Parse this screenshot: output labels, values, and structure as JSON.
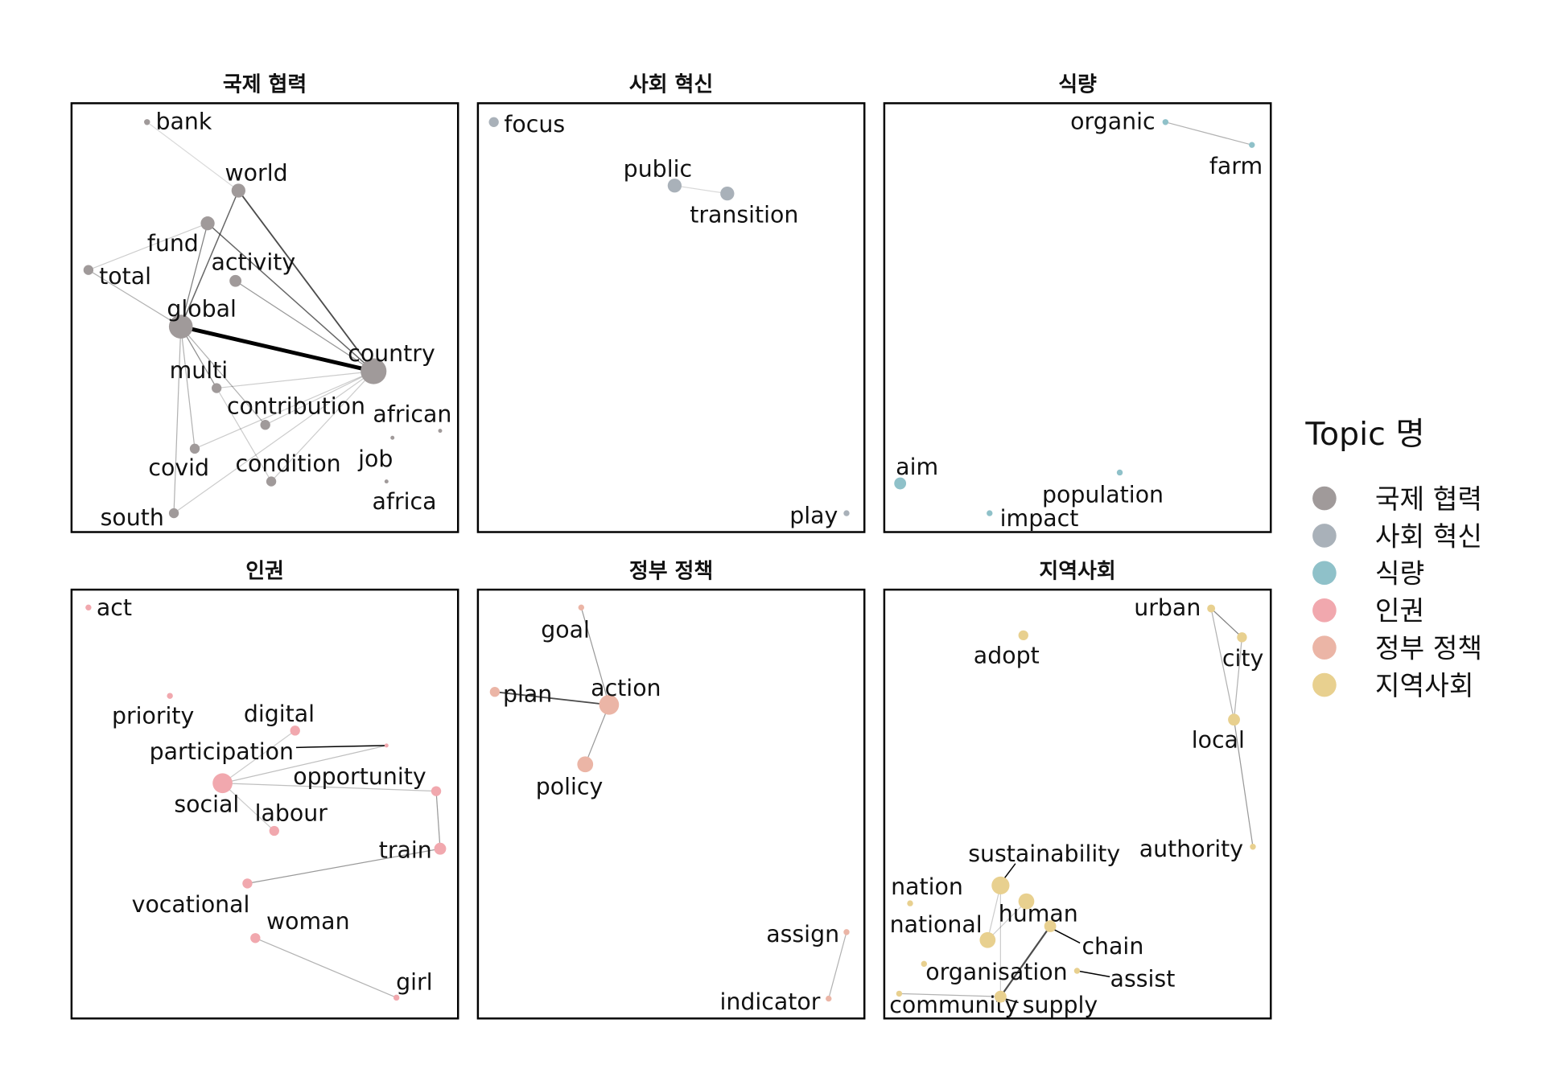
{
  "panels": [
    {
      "title": "국제 협력",
      "color": "#a09a9a",
      "nodes": [
        {
          "label": "bank"
        },
        {
          "label": "world"
        },
        {
          "label": "fund"
        },
        {
          "label": "total"
        },
        {
          "label": "activity"
        },
        {
          "label": "global"
        },
        {
          "label": "country"
        },
        {
          "label": "multi"
        },
        {
          "label": "contribution"
        },
        {
          "label": "african"
        },
        {
          "label": "job"
        },
        {
          "label": "covid"
        },
        {
          "label": "condition"
        },
        {
          "label": "africa"
        },
        {
          "label": "south"
        }
      ]
    },
    {
      "title": "사회 혁신",
      "color": "#a9b1b9",
      "nodes": [
        {
          "label": "focus"
        },
        {
          "label": "public"
        },
        {
          "label": "transition"
        },
        {
          "label": "play"
        }
      ]
    },
    {
      "title": "식량",
      "color": "#8fc1c9",
      "nodes": [
        {
          "label": "organic"
        },
        {
          "label": "farm"
        },
        {
          "label": "aim"
        },
        {
          "label": "population"
        },
        {
          "label": "impact"
        }
      ]
    },
    {
      "title": "인권",
      "color": "#f1a8ae",
      "nodes": [
        {
          "label": "act"
        },
        {
          "label": "priority"
        },
        {
          "label": "digital"
        },
        {
          "label": "participation"
        },
        {
          "label": "social"
        },
        {
          "label": "opportunity"
        },
        {
          "label": "labour"
        },
        {
          "label": "train"
        },
        {
          "label": "vocational"
        },
        {
          "label": "woman"
        },
        {
          "label": "girl"
        }
      ]
    },
    {
      "title": "정부 정책",
      "color": "#ebb5a6",
      "nodes": [
        {
          "label": "goal"
        },
        {
          "label": "plan"
        },
        {
          "label": "action"
        },
        {
          "label": "policy"
        },
        {
          "label": "assign"
        },
        {
          "label": "indicator"
        }
      ]
    },
    {
      "title": "지역사회",
      "color": "#e8d08f",
      "nodes": [
        {
          "label": "urban"
        },
        {
          "label": "adopt"
        },
        {
          "label": "city"
        },
        {
          "label": "local"
        },
        {
          "label": "authority"
        },
        {
          "label": "sustainability"
        },
        {
          "label": "nation"
        },
        {
          "label": "human"
        },
        {
          "label": "national"
        },
        {
          "label": "chain"
        },
        {
          "label": "organisation"
        },
        {
          "label": "assist"
        },
        {
          "label": "community"
        },
        {
          "label": "supply"
        }
      ]
    }
  ],
  "legend": {
    "title": "Topic 명",
    "items": [
      {
        "label": "국제 협력",
        "color": "#a09a9a"
      },
      {
        "label": "사회 혁신",
        "color": "#a9b1b9"
      },
      {
        "label": "식량",
        "color": "#8fc1c9"
      },
      {
        "label": "인권",
        "color": "#f1a8ae"
      },
      {
        "label": "정부 정책",
        "color": "#ebb5a6"
      },
      {
        "label": "지역사회",
        "color": "#e8d08f"
      }
    ]
  }
}
